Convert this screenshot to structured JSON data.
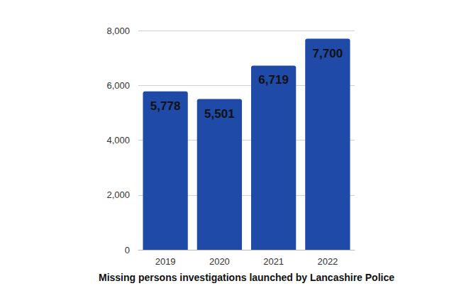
{
  "chart_data": {
    "type": "bar",
    "x_label": "Missing persons investigations launched by Lancashire Police",
    "categories": [
      "2019",
      "2020",
      "2021",
      "2022"
    ],
    "values": [
      5778,
      5501,
      6719,
      7700
    ],
    "value_labels": [
      "5,778",
      "5,501",
      "6,719",
      "7,700"
    ],
    "color": "#1f4aa8",
    "ylim": [
      0,
      8000
    ],
    "yticks": [
      0,
      {
        "value": 2000,
        "label": "2,000"
      },
      {
        "value": 4000,
        "label": "4,000"
      },
      {
        "value": 6000,
        "label": "6,000"
      },
      {
        "value": 8000,
        "label": "8,000"
      }
    ],
    "grid": true,
    "data_labels": true
  }
}
